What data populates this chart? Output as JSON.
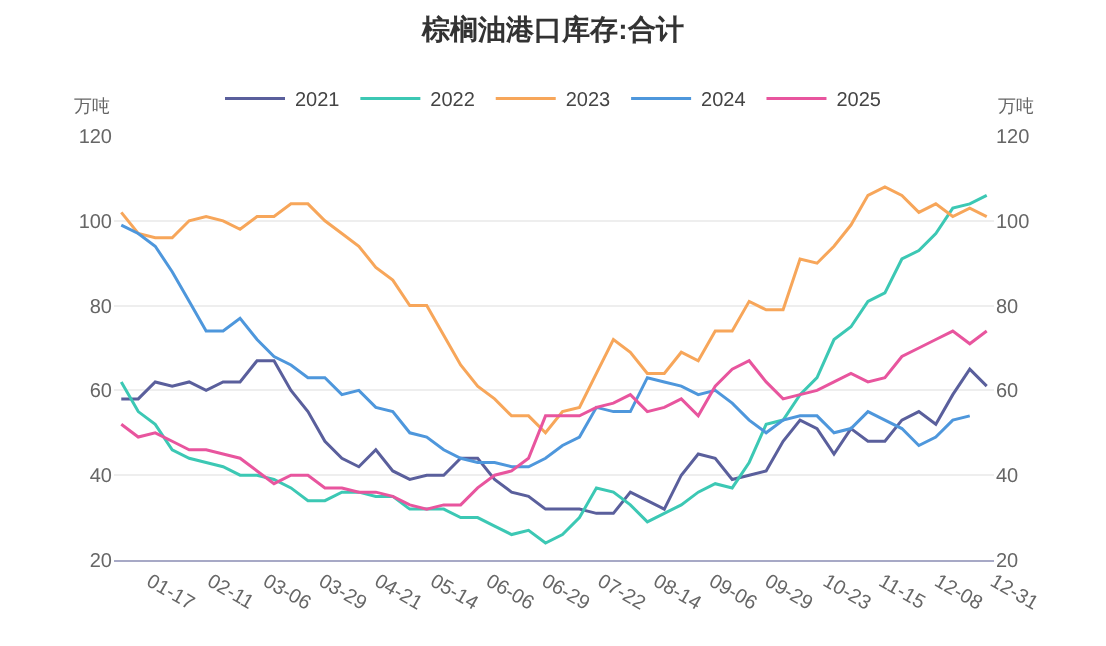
{
  "chart_data": {
    "type": "line",
    "title": "棕榈油港口库存:合计",
    "ylabel": "万吨",
    "y2label": "万吨",
    "x": [
      "--01-05",
      "--01-12",
      "--01-19",
      "--01-26",
      "--02-02",
      "--02-09",
      "--02-16",
      "--02-23",
      "--03-02",
      "--03-09",
      "--03-16",
      "--03-23",
      "--03-30",
      "--04-06",
      "--04-13",
      "--04-20",
      "--04-27",
      "--05-04",
      "--05-11",
      "--05-18",
      "--05-25",
      "--06-01",
      "--06-08",
      "--06-15",
      "--06-22",
      "--06-29",
      "--07-06",
      "--07-13",
      "--07-20",
      "--07-27",
      "--08-03",
      "--08-10",
      "--08-17",
      "--08-24",
      "--08-31",
      "--09-07",
      "--09-14",
      "--09-21",
      "--09-28",
      "--10-05",
      "--10-12",
      "--10-19",
      "--10-26",
      "--11-02",
      "--11-09",
      "--11-16",
      "--11-23",
      "--11-30",
      "--12-07",
      "--12-14",
      "--12-21",
      "--12-28"
    ],
    "series": [
      {
        "name": "2021",
        "color": "#5a5f9c",
        "values": [
          58,
          58,
          62,
          61,
          62,
          60,
          62,
          62,
          67,
          67,
          60,
          55,
          48,
          44,
          42,
          46,
          41,
          39,
          40,
          40,
          44,
          44,
          39,
          36,
          35,
          32,
          32,
          32,
          31,
          31,
          36,
          34,
          32,
          40,
          45,
          44,
          39,
          40,
          41,
          48,
          53,
          51,
          45,
          51,
          48,
          48,
          53,
          55,
          52,
          59,
          65,
          61
        ]
      },
      {
        "name": "2022",
        "color": "#3cc8b4",
        "values": [
          62,
          55,
          52,
          46,
          44,
          43,
          42,
          40,
          40,
          39,
          37,
          34,
          34,
          36,
          36,
          35,
          35,
          32,
          32,
          32,
          30,
          30,
          28,
          26,
          27,
          24,
          26,
          30,
          37,
          36,
          33,
          29,
          31,
          33,
          36,
          38,
          37,
          43,
          52,
          53,
          59,
          63,
          72,
          75,
          81,
          83,
          91,
          93,
          97,
          103,
          104,
          106
        ]
      },
      {
        "name": "2023",
        "color": "#f7a65a",
        "values": [
          102,
          97,
          96,
          96,
          100,
          101,
          100,
          98,
          101,
          101,
          104,
          104,
          100,
          97,
          94,
          89,
          86,
          80,
          80,
          73,
          66,
          61,
          58,
          54,
          54,
          50,
          55,
          56,
          64,
          72,
          69,
          64,
          64,
          69,
          67,
          74,
          74,
          81,
          79,
          79,
          91,
          90,
          94,
          99,
          106,
          108,
          106,
          102,
          104,
          101,
          103,
          101
        ]
      },
      {
        "name": "2024",
        "color": "#4e97dc",
        "values": [
          99,
          97,
          94,
          88,
          81,
          74,
          74,
          77,
          72,
          68,
          66,
          63,
          63,
          59,
          60,
          56,
          55,
          50,
          49,
          46,
          44,
          43,
          43,
          42,
          42,
          44,
          47,
          49,
          56,
          55,
          55,
          63,
          62,
          61,
          59,
          60,
          57,
          53,
          50,
          53,
          54,
          54,
          50,
          51,
          55,
          53,
          51,
          47,
          49,
          53,
          54,
          null
        ]
      },
      {
        "name": "2025",
        "color": "#e8559e",
        "values": [
          52,
          49,
          50,
          48,
          46,
          46,
          45,
          44,
          41,
          38,
          40,
          40,
          37,
          37,
          36,
          36,
          35,
          33,
          32,
          33,
          33,
          37,
          40,
          41,
          44,
          54,
          54,
          54,
          56,
          57,
          59,
          55,
          56,
          58,
          54,
          61,
          65,
          67,
          62,
          58,
          59,
          60,
          62,
          64,
          62,
          63,
          68,
          70,
          72,
          74,
          71,
          74
        ]
      }
    ],
    "xlim": [
      "--01-02",
      "--12-31"
    ],
    "xticks": [
      {
        "value": "--01-17",
        "label": "01-17"
      },
      {
        "value": "--02-11",
        "label": "02-11"
      },
      {
        "value": "--03-06",
        "label": "03-06"
      },
      {
        "value": "--03-29",
        "label": "03-29"
      },
      {
        "value": "--04-21",
        "label": "04-21"
      },
      {
        "value": "--05-14",
        "label": "05-14"
      },
      {
        "value": "--06-06",
        "label": "06-06"
      },
      {
        "value": "--06-29",
        "label": "06-29"
      },
      {
        "value": "--07-22",
        "label": "07-22"
      },
      {
        "value": "--08-14",
        "label": "08-14"
      },
      {
        "value": "--09-06",
        "label": "09-06"
      },
      {
        "value": "--09-29",
        "label": "09-29"
      },
      {
        "value": "--10-23",
        "label": "10-23"
      },
      {
        "value": "--11-15",
        "label": "11-15"
      },
      {
        "value": "--12-08",
        "label": "12-08"
      },
      {
        "value": "--12-31",
        "label": "12-31"
      }
    ],
    "ylim": [
      20,
      120
    ],
    "yticks": [
      20,
      40,
      60,
      80,
      100,
      120
    ],
    "y2lim": [
      20,
      120
    ],
    "y2ticks": [
      20,
      40,
      60,
      80,
      100,
      120
    ],
    "grid": "y",
    "legend": "top",
    "marker": "none",
    "line_style": "solid"
  }
}
